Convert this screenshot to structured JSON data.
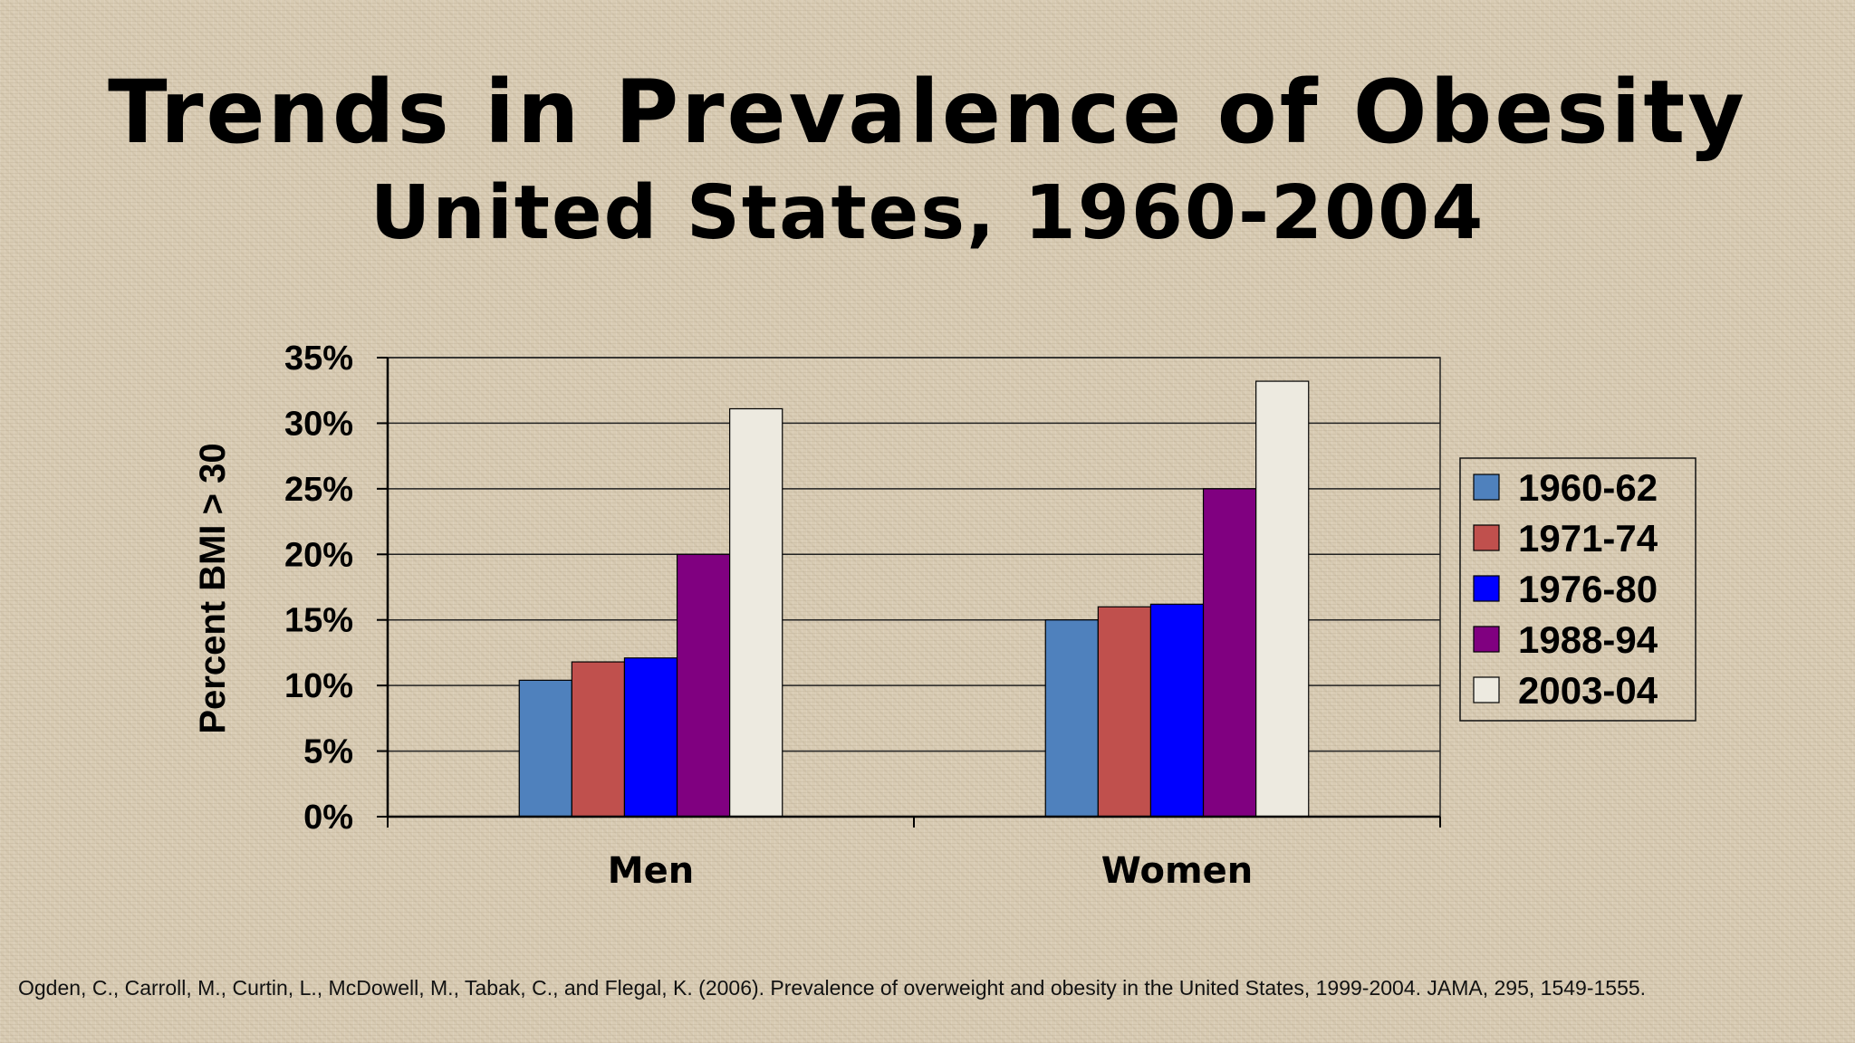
{
  "slide": {
    "title_line1": "Trends in Prevalence of Obesity",
    "title_line2": "United States, 1960-2004",
    "citation": "Ogden, C., Carroll, M., Curtin, L., McDowell, M., Tabak, C., and Flegal, K. (2006). Prevalence of overweight and obesity in the United States, 1999-2004. JAMA, 295, 1549-1555."
  },
  "chart_data": {
    "type": "bar",
    "title": "Trends in Prevalence of Obesity",
    "subtitle": "United States, 1960-2004",
    "xlabel": "",
    "ylabel": "Percent BMI > 30",
    "categories": [
      "Men",
      "Women"
    ],
    "ylim": [
      0,
      35
    ],
    "yticks": [
      0,
      5,
      10,
      15,
      20,
      25,
      30,
      35
    ],
    "ytick_labels": [
      "0%",
      "5%",
      "10%",
      "15%",
      "20%",
      "25%",
      "30%",
      "35%"
    ],
    "grid": true,
    "legend_position": "right",
    "series": [
      {
        "name": "1960-62",
        "color": "#4f81bd",
        "values": [
          10.4,
          15.0
        ]
      },
      {
        "name": "1971-74",
        "color": "#c0504d",
        "values": [
          11.8,
          16.0
        ]
      },
      {
        "name": "1976-80",
        "color": "#0000ff",
        "values": [
          12.1,
          16.2
        ]
      },
      {
        "name": "1988-94",
        "color": "#800080",
        "values": [
          20.0,
          25.0
        ]
      },
      {
        "name": "2003-04",
        "color": "#edeae0",
        "values": [
          31.1,
          33.2
        ]
      }
    ]
  }
}
